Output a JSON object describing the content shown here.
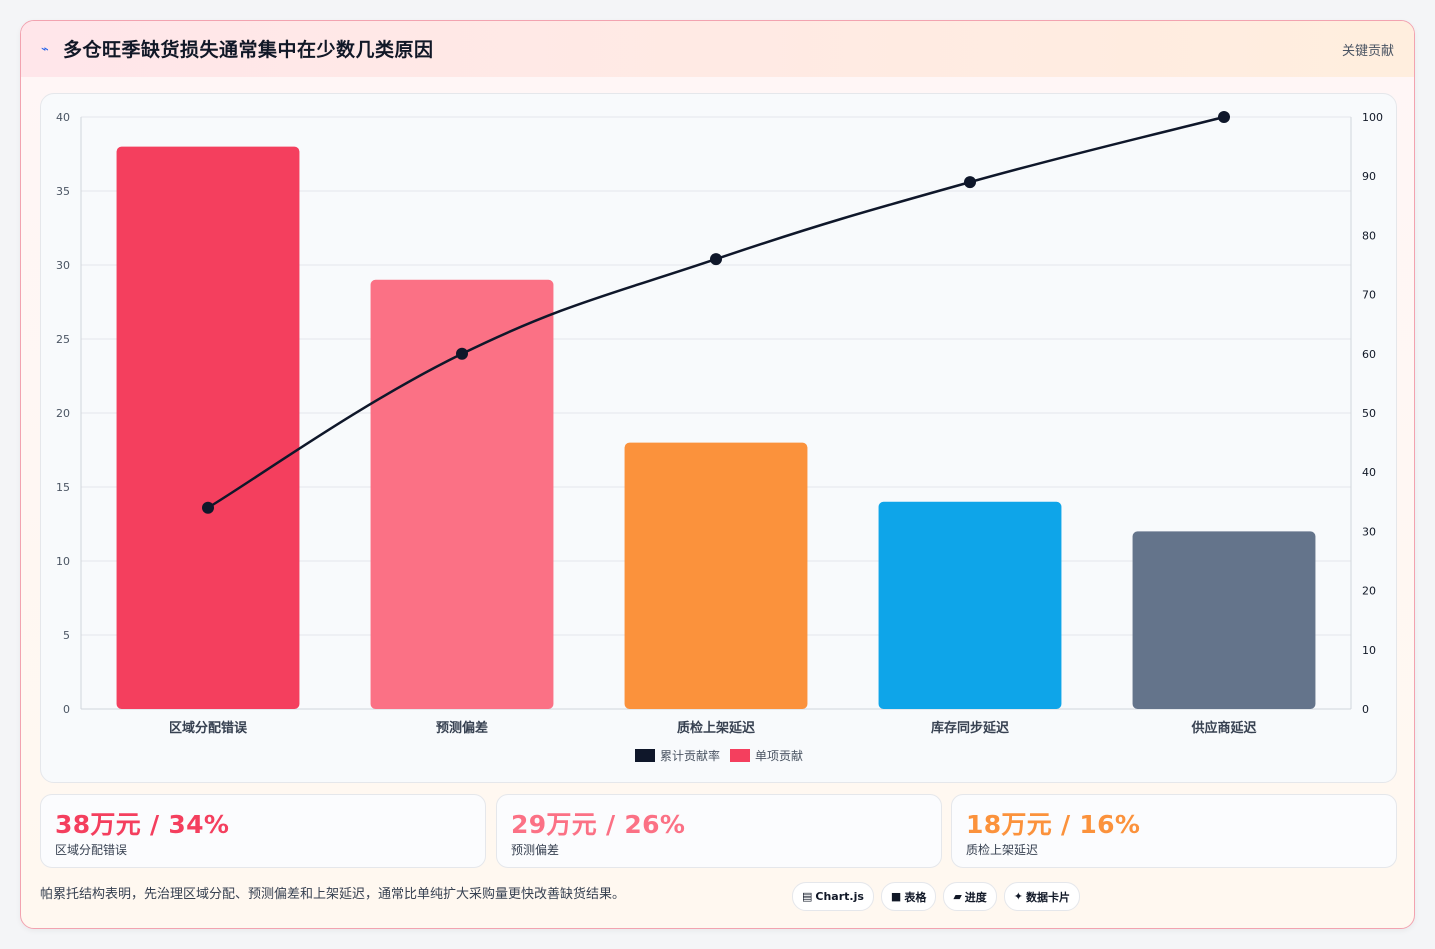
{
  "header": {
    "icon": "lightning-icon",
    "title": "多仓旺季缺货损失通常集中在少数几类原因",
    "tag": "关键贡献"
  },
  "chart_data": {
    "type": "bar",
    "categories": [
      "区域分配错误",
      "预测偏差",
      "质检上架延迟",
      "库存同步延迟",
      "供应商延迟"
    ],
    "series": [
      {
        "name": "单项贡献",
        "type": "bar",
        "axis": "left",
        "values": [
          38,
          29,
          18,
          14,
          12
        ],
        "colors": [
          "#f43f5e",
          "#fb7185",
          "#fb923c",
          "#0ea5e9",
          "#64748b"
        ]
      },
      {
        "name": "累计贡献率",
        "type": "line",
        "axis": "right",
        "values": [
          34,
          60,
          76,
          89,
          100
        ],
        "color": "#0f172a"
      }
    ],
    "y_left": {
      "min": 0,
      "max": 40,
      "ticks": [
        0,
        5,
        10,
        15,
        20,
        25,
        30,
        35,
        40
      ]
    },
    "y_right": {
      "min": 0,
      "max": 100,
      "ticks": [
        0,
        10,
        20,
        30,
        40,
        50,
        60,
        70,
        80,
        90,
        100
      ]
    },
    "legend": {
      "position": "bottom",
      "items": [
        {
          "label": "累计贡献率",
          "color": "#0f172a"
        },
        {
          "label": "单项贡献",
          "color": "#f43f5e"
        }
      ]
    },
    "grid": true
  },
  "kpis": [
    {
      "value": "38万元 / 34%",
      "label": "区域分配错误",
      "color": "#f43f5e"
    },
    {
      "value": "29万元 / 26%",
      "label": "预测偏差",
      "color": "#fb7185"
    },
    {
      "value": "18万元 / 16%",
      "label": "质检上架延迟",
      "color": "#fb923c"
    }
  ],
  "footer": {
    "text": "帕累托结构表明，先治理区域分配、预测偏差和上架延迟，通常比单纯扩大采购量更快改善缺货结果。",
    "pills": [
      {
        "icon": "chart-icon",
        "glyph": "▤",
        "label": "Chart.js"
      },
      {
        "icon": "table-icon",
        "glyph": "■",
        "label": "表格"
      },
      {
        "icon": "progress-icon",
        "glyph": "▰",
        "label": "进度"
      },
      {
        "icon": "sparkle-icon",
        "glyph": "✦",
        "label": "数据卡片"
      }
    ]
  }
}
